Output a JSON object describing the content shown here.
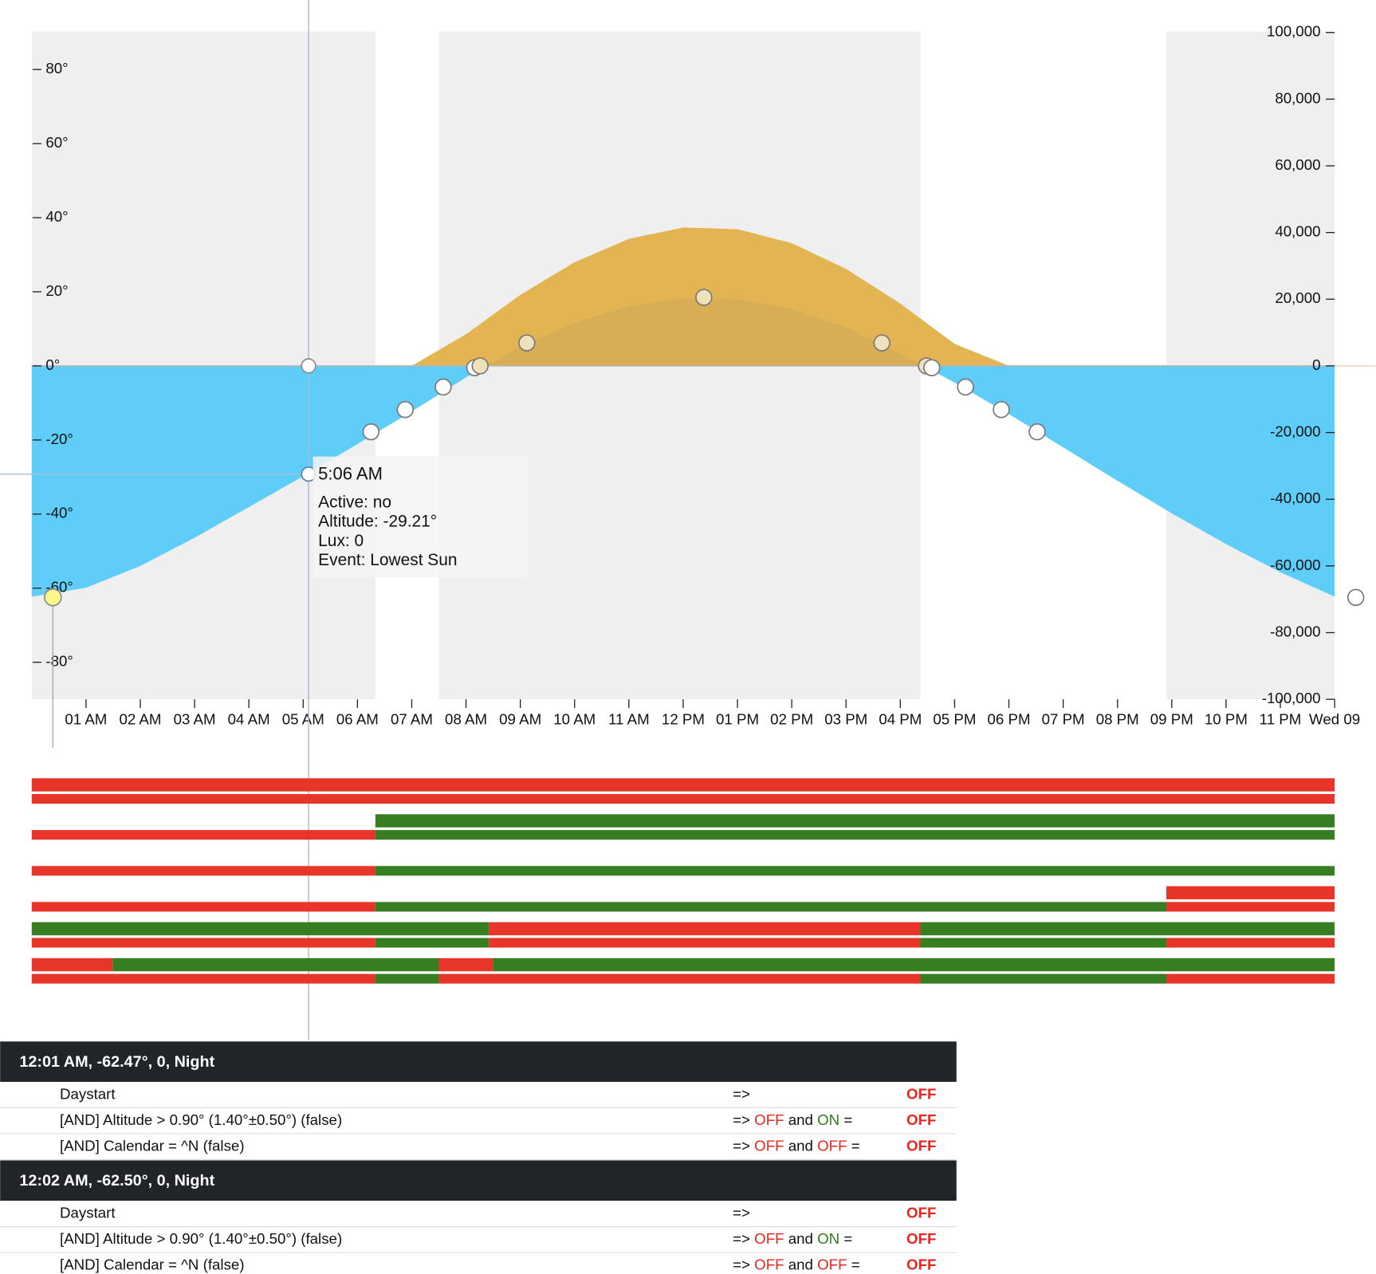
{
  "chart_data": {
    "type": "area",
    "x": [
      0,
      1,
      2,
      3,
      4,
      5,
      6,
      7,
      8,
      9,
      10,
      11,
      12,
      13,
      14,
      15,
      16,
      17,
      18,
      19,
      20,
      21,
      22,
      23,
      24
    ],
    "xlim": [
      0,
      24
    ],
    "xticks": [
      {
        "value": 1,
        "label": "01 AM"
      },
      {
        "value": 2,
        "label": "02 AM"
      },
      {
        "value": 3,
        "label": "03 AM"
      },
      {
        "value": 4,
        "label": "04 AM"
      },
      {
        "value": 5,
        "label": "05 AM"
      },
      {
        "value": 6,
        "label": "06 AM"
      },
      {
        "value": 7,
        "label": "07 AM"
      },
      {
        "value": 8,
        "label": "08 AM"
      },
      {
        "value": 9,
        "label": "09 AM"
      },
      {
        "value": 10,
        "label": "10 AM"
      },
      {
        "value": 11,
        "label": "11 AM"
      },
      {
        "value": 12,
        "label": "12 PM"
      },
      {
        "value": 13,
        "label": "01 PM"
      },
      {
        "value": 14,
        "label": "02 PM"
      },
      {
        "value": 15,
        "label": "03 PM"
      },
      {
        "value": 16,
        "label": "04 PM"
      },
      {
        "value": 17,
        "label": "05 PM"
      },
      {
        "value": 18,
        "label": "06 PM"
      },
      {
        "value": 19,
        "label": "07 PM"
      },
      {
        "value": 20,
        "label": "08 PM"
      },
      {
        "value": 21,
        "label": "09 PM"
      },
      {
        "value": 22,
        "label": "10 PM"
      },
      {
        "value": 23,
        "label": "11 PM"
      },
      {
        "value": 24,
        "label": "Wed 09"
      }
    ],
    "ylim": [
      -90,
      90
    ],
    "yticks": [
      {
        "value": -80,
        "label": "-80°"
      },
      {
        "value": -60,
        "label": "-60°"
      },
      {
        "value": -40,
        "label": "-40°"
      },
      {
        "value": -20,
        "label": "-20°"
      },
      {
        "value": 0,
        "label": "0°"
      },
      {
        "value": 20,
        "label": "20°"
      },
      {
        "value": 40,
        "label": "40°"
      },
      {
        "value": 60,
        "label": "60°"
      },
      {
        "value": 80,
        "label": "80°"
      }
    ],
    "y2lim": [
      -100000,
      100000
    ],
    "y2ticks": [
      {
        "value": -100000,
        "label": "-100,000"
      },
      {
        "value": -80000,
        "label": "-80,000"
      },
      {
        "value": -60000,
        "label": "-60,000"
      },
      {
        "value": -40000,
        "label": "-40,000"
      },
      {
        "value": -20000,
        "label": "-20,000"
      },
      0,
      {
        "value": 20000,
        "label": "20,000"
      },
      {
        "value": 40000,
        "label": "40,000"
      },
      {
        "value": 60000,
        "label": "60,000"
      },
      {
        "value": 80000,
        "label": "80,000"
      },
      {
        "value": 100000,
        "label": "100,000"
      }
    ],
    "bands": [
      [
        0,
        6.33
      ],
      [
        7.5,
        16.37
      ],
      [
        20.9,
        24
      ]
    ],
    "band_color": "#efefef",
    "series": [
      {
        "color": "#5ecdf8",
        "positive_color": "#cfa95a",
        "values": [
          -62.3,
          -59.9,
          -54.0,
          -46.4,
          -38.1,
          -29.8,
          -21.1,
          -12.3,
          -3.1,
          5.2,
          11.6,
          16.1,
          18.2,
          18.0,
          15.4,
          10.4,
          3.3,
          -4.5,
          -13.0,
          -22.0,
          -31.0,
          -39.8,
          -48.1,
          -55.7,
          -62.3
        ]
      },
      {
        "color": "#e3b552",
        "axis": "y2",
        "values": [
          0,
          0,
          0,
          0,
          0,
          0,
          0,
          0,
          9500,
          21300,
          31100,
          38100,
          41500,
          41000,
          36800,
          29100,
          18700,
          6600,
          0,
          0,
          0,
          0,
          0,
          0,
          0
        ]
      }
    ],
    "markers": {
      "x": [
        6.25,
        6.88,
        7.58,
        8.16,
        8.26,
        9.12,
        12.38,
        15.66,
        16.48,
        16.58,
        17.2,
        17.86,
        18.52,
        24.39
      ],
      "values": [
        -17.8,
        -11.8,
        -5.7,
        -0.5,
        0,
        6.2,
        18.5,
        6.2,
        0,
        -0.5,
        -5.7,
        -11.8,
        -17.8,
        -62.5
      ],
      "fill_day": "#efe2bb",
      "fill_night": "#ffffff"
    },
    "lux_markers": {
      "x": [
        5.1
      ],
      "values": [
        0
      ]
    },
    "selected": {
      "x": 0.39,
      "value": -62.47,
      "color": "#fdf68b"
    },
    "crosshair": {
      "x": 5.1,
      "value": -29.21
    },
    "tooltip": {
      "title": "5:06 AM",
      "lines": [
        "Active: no",
        "Altitude: -29.21°",
        "Lux: 0",
        "Event: Lowest Sun"
      ]
    }
  },
  "timeline": {
    "rows": [
      {
        "top": [
          {
            "start": 0,
            "end": 24,
            "color": "#e8352a"
          }
        ],
        "bottom": [
          {
            "start": 0,
            "end": 24,
            "color": "#e8352a"
          }
        ]
      },
      {
        "top": [
          {
            "start": 6.33,
            "end": 24,
            "color": "#377e22"
          }
        ],
        "bottom": [
          {
            "start": 0,
            "end": 6.33,
            "color": "#e8352a"
          },
          {
            "start": 6.33,
            "end": 24,
            "color": "#377e22"
          }
        ]
      },
      {
        "top": [],
        "bottom": [
          {
            "start": 0,
            "end": 6.33,
            "color": "#e8352a"
          },
          {
            "start": 6.33,
            "end": 24,
            "color": "#377e22"
          }
        ]
      },
      {
        "top": [
          {
            "start": 20.9,
            "end": 24,
            "color": "#e8352a"
          }
        ],
        "bottom": [
          {
            "start": 0,
            "end": 6.33,
            "color": "#e8352a"
          },
          {
            "start": 6.33,
            "end": 20.9,
            "color": "#377e22"
          },
          {
            "start": 20.9,
            "end": 24,
            "color": "#e8352a"
          }
        ]
      },
      {
        "top": [
          {
            "start": 0,
            "end": 8.42,
            "color": "#377e22"
          },
          {
            "start": 8.42,
            "end": 16.37,
            "color": "#e8352a"
          },
          {
            "start": 16.37,
            "end": 24,
            "color": "#377e22"
          }
        ],
        "bottom": [
          {
            "start": 0,
            "end": 6.33,
            "color": "#e8352a"
          },
          {
            "start": 6.33,
            "end": 8.42,
            "color": "#377e22"
          },
          {
            "start": 8.42,
            "end": 16.37,
            "color": "#e8352a"
          },
          {
            "start": 16.37,
            "end": 20.9,
            "color": "#377e22"
          },
          {
            "start": 20.9,
            "end": 24,
            "color": "#e8352a"
          }
        ]
      },
      {
        "top": [
          {
            "start": 0,
            "end": 1.49,
            "color": "#e8352a"
          },
          {
            "start": 1.49,
            "end": 7.5,
            "color": "#377e22"
          },
          {
            "start": 7.5,
            "end": 8.5,
            "color": "#e8352a"
          },
          {
            "start": 8.5,
            "end": 24,
            "color": "#377e22"
          }
        ],
        "bottom": [
          {
            "start": 0,
            "end": 6.33,
            "color": "#e8352a"
          },
          {
            "start": 6.33,
            "end": 7.5,
            "color": "#377e22"
          },
          {
            "start": 7.5,
            "end": 16.37,
            "color": "#e8352a"
          },
          {
            "start": 16.37,
            "end": 20.9,
            "color": "#377e22"
          },
          {
            "start": 20.9,
            "end": 24,
            "color": "#e8352a"
          }
        ]
      }
    ]
  },
  "table": {
    "state_colors": {
      "OFF": "#e8251f",
      "ON": "#2e7d1c"
    },
    "groups": [
      {
        "header": "12:01 AM, -62.47°, 0, Night",
        "rows": [
          {
            "label": "Daystart",
            "expr": [
              "=>"
            ],
            "result": "OFF"
          },
          {
            "label": "[AND] Altitude > 0.90° (1.40°±0.50°) (false)",
            "expr": [
              "=>",
              "OFF",
              "and",
              "ON",
              "="
            ],
            "result": "OFF"
          },
          {
            "label": "[AND] Calendar = ^N (false)",
            "expr": [
              "=>",
              "OFF",
              "and",
              "OFF",
              "="
            ],
            "result": "OFF"
          }
        ]
      },
      {
        "header": "12:02 AM, -62.50°, 0, Night",
        "rows": [
          {
            "label": "Daystart",
            "expr": [
              "=>"
            ],
            "result": "OFF"
          },
          {
            "label": "[AND] Altitude > 0.90° (1.40°±0.50°) (false)",
            "expr": [
              "=>",
              "OFF",
              "and",
              "ON",
              "="
            ],
            "result": "OFF"
          },
          {
            "label": "[AND] Calendar = ^N (false)",
            "expr": [
              "=>",
              "OFF",
              "and",
              "OFF",
              "="
            ],
            "result": "OFF"
          }
        ]
      }
    ]
  }
}
